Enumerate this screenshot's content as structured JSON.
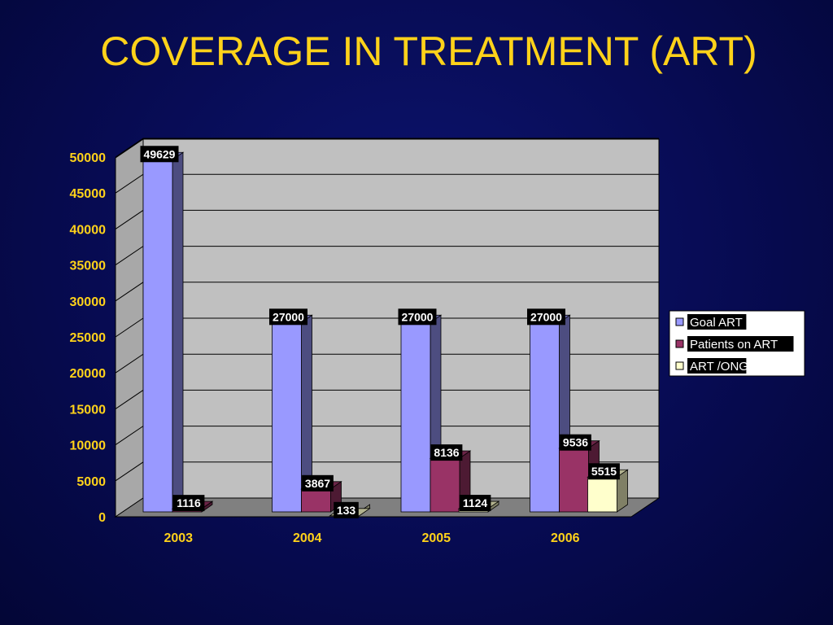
{
  "title": "COVERAGE IN TREATMENT (ART)",
  "colors": {
    "title": "#ffd21a",
    "background": "#070b52",
    "wall": "#c0c0c0",
    "floor": "#808080"
  },
  "chart_data": {
    "type": "bar",
    "variant": "3d-clustered-column",
    "title": "COVERAGE IN TREATMENT (ART)",
    "xlabel": "",
    "ylabel": "",
    "categories": [
      "2003",
      "2004",
      "2005",
      "2006"
    ],
    "ylim": [
      0,
      50000
    ],
    "yticks": [
      0,
      5000,
      10000,
      15000,
      20000,
      25000,
      30000,
      35000,
      40000,
      45000,
      50000
    ],
    "grid": true,
    "legend_position": "right",
    "series": [
      {
        "name": "Goal ART",
        "color": "#9999ff",
        "values": [
          49629,
          27000,
          27000,
          27000
        ],
        "labels": [
          "49629",
          "27000",
          "27000",
          "27000"
        ]
      },
      {
        "name": "Patients on ART",
        "color": "#993366",
        "values": [
          1116,
          3867,
          8136,
          9536
        ],
        "labels": [
          "1116",
          "3867",
          "8136",
          "9536"
        ]
      },
      {
        "name": "ART /ONG",
        "color": "#ffffcc",
        "values": [
          null,
          133,
          1124,
          5515
        ],
        "labels": [
          null,
          "133",
          "1124",
          "5515"
        ]
      }
    ]
  }
}
